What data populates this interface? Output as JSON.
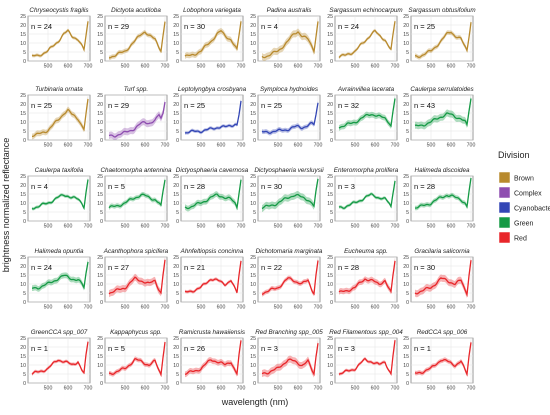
{
  "chart_data": {
    "type": "line",
    "facet_grid": "small multiples, 5 rows x 6 columns (last row 6 panels)",
    "xlabel": "wavelength (nm)",
    "ylabel": "brightness normalized reflectance",
    "xlim": [
      400,
      710
    ],
    "ylim": [
      0,
      25
    ],
    "x_ticks": [
      "500",
      "600",
      "700"
    ],
    "y_ticks": [
      "0",
      "5",
      "10",
      "15",
      "20",
      "25"
    ],
    "grid": true,
    "legend_title": "Division",
    "legend_position": "right",
    "legend": [
      {
        "label": "Brown",
        "color": "#B88A2E"
      },
      {
        "label": "Complex",
        "color": "#8E4DB0"
      },
      {
        "label": "Cyanobacteria",
        "color": "#3346B5"
      },
      {
        "label": "Green",
        "color": "#159A45"
      },
      {
        "label": "Red",
        "color": "#E8262A"
      }
    ],
    "panels": [
      {
        "title": "Chryseocystis fragilis",
        "n": "n = 24",
        "division": "Brown",
        "shape": "brown"
      },
      {
        "title": "Dictyota acutiloba",
        "n": "n = 29",
        "division": "Brown",
        "shape": "brown"
      },
      {
        "title": "Lobophora variegata",
        "n": "n = 30",
        "division": "Brown",
        "shape": "brown"
      },
      {
        "title": "Padina australis",
        "n": "n = 4",
        "division": "Brown",
        "shape": "brown"
      },
      {
        "title": "Sargassum echinocarpum",
        "n": "n = 24",
        "division": "Brown",
        "shape": "brown"
      },
      {
        "title": "Sargassum obtusifolium",
        "n": "n = 25",
        "division": "Brown",
        "shape": "brown"
      },
      {
        "title": "Turbinaria ornata",
        "n": "n = 25",
        "division": "Brown",
        "shape": "brown"
      },
      {
        "title": "Turf spp.",
        "n": "n = 29",
        "division": "Complex",
        "shape": "complex"
      },
      {
        "title": "Leptolyngbya crosbyana",
        "n": "n = 25",
        "division": "Cyanobacteria",
        "shape": "cyano"
      },
      {
        "title": "Symploca hydnoides",
        "n": "n = 25",
        "division": "Cyanobacteria",
        "shape": "cyano"
      },
      {
        "title": "Avrainvillea lacerata",
        "n": "n = 32",
        "division": "Green",
        "shape": "green"
      },
      {
        "title": "Caulerpa serrulatoides",
        "n": "n = 43",
        "division": "Green",
        "shape": "green"
      },
      {
        "title": "Caulerpa taxifolia",
        "n": "n = 4",
        "division": "Green",
        "shape": "green"
      },
      {
        "title": "Chaetomorpha antennina",
        "n": "n = 5",
        "division": "Green",
        "shape": "green"
      },
      {
        "title": "Dictyosphaeria cavernosa",
        "n": "n = 28",
        "division": "Green",
        "shape": "green"
      },
      {
        "title": "Dictyosphaeria versluysii",
        "n": "n = 30",
        "division": "Green",
        "shape": "green"
      },
      {
        "title": "Enteromorpha prolifera",
        "n": "n = 3",
        "division": "Green",
        "shape": "green"
      },
      {
        "title": "Halimeda discoidea",
        "n": "n = 28",
        "division": "Green",
        "shape": "green"
      },
      {
        "title": "Halimeda opuntia",
        "n": "n = 24",
        "division": "Green",
        "shape": "green"
      },
      {
        "title": "Acanthophora spicifera",
        "n": "n = 27",
        "division": "Red",
        "shape": "red"
      },
      {
        "title": "Ahnfeltiopsis concinna",
        "n": "n = 21",
        "division": "Red",
        "shape": "red"
      },
      {
        "title": "Dichotomaria marginata",
        "n": "n = 22",
        "division": "Red",
        "shape": "red"
      },
      {
        "title": "Eucheuma spp.",
        "n": "n = 28",
        "division": "Red",
        "shape": "red"
      },
      {
        "title": "Gracilaria salicornia",
        "n": "n = 30",
        "division": "Red",
        "shape": "red"
      },
      {
        "title": "GreenCCA spp_007",
        "n": "n = 1",
        "division": "Red",
        "shape": "red"
      },
      {
        "title": "Kappaphycus spp.",
        "n": "n = 5",
        "division": "Red",
        "shape": "red"
      },
      {
        "title": "Ramicrusta hawaiiensis",
        "n": "n = 26",
        "division": "Red",
        "shape": "red"
      },
      {
        "title": "Red Branching spp_005",
        "n": "n = 3",
        "division": "Red",
        "shape": "red"
      },
      {
        "title": "Red Filamentous spp_004",
        "n": "n = 3",
        "division": "Red",
        "shape": "red"
      },
      {
        "title": "RedCCA spp_006",
        "n": "n = 1",
        "division": "Red",
        "shape": "red"
      }
    ],
    "curve_profiles": {
      "x": [
        400,
        450,
        500,
        550,
        580,
        600,
        620,
        650,
        670,
        680,
        690,
        700
      ],
      "brown": [
        2,
        3,
        5.5,
        11,
        15,
        16.5,
        14,
        12,
        8,
        6,
        14,
        22
      ],
      "complex": [
        2,
        2.5,
        4,
        6.5,
        9,
        10,
        9.5,
        10.5,
        14,
        12,
        15,
        22
      ],
      "cyano": [
        4,
        4.5,
        5,
        6,
        7,
        7.5,
        7,
        8,
        9,
        8.5,
        14,
        21
      ],
      "green": [
        7,
        8,
        10,
        13,
        14.5,
        14,
        13,
        12,
        10,
        8,
        16,
        23
      ],
      "red": [
        4.5,
        6,
        8,
        13,
        12,
        11,
        10,
        12,
        7,
        5,
        15,
        23
      ]
    }
  }
}
